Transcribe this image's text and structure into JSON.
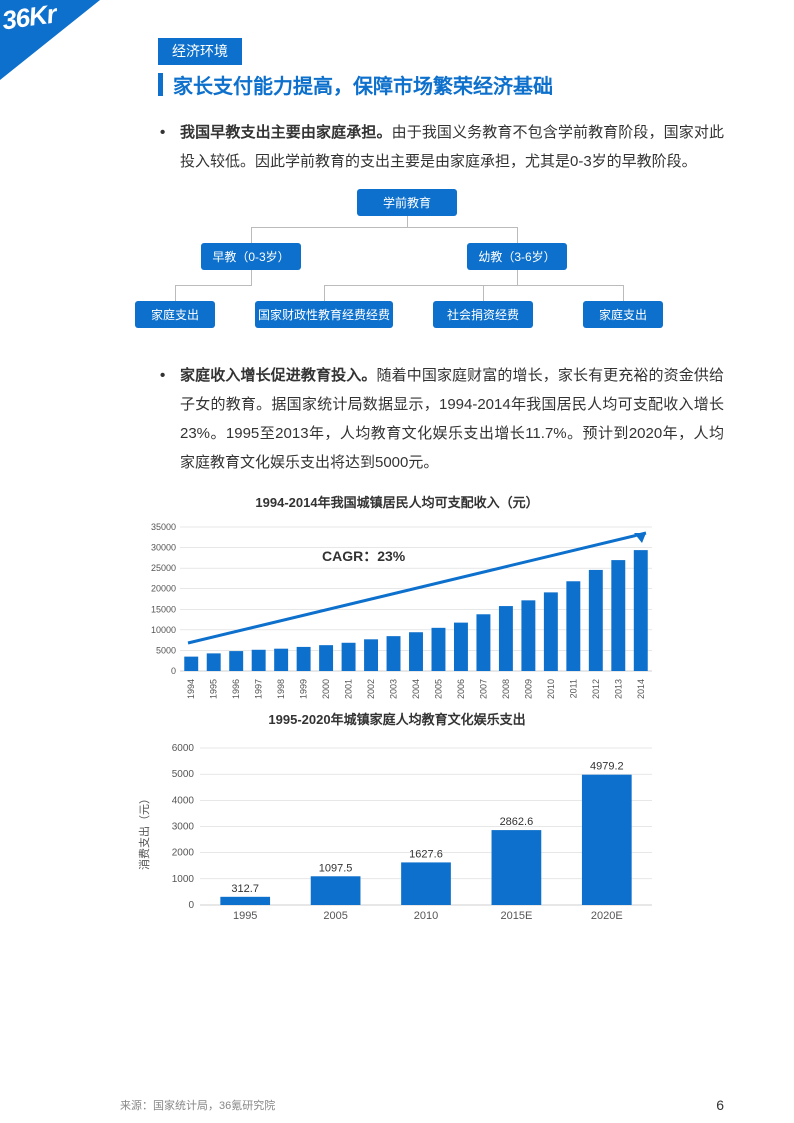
{
  "logo": "36Kr",
  "tag": "经济环境",
  "title": "家长支付能力提高，保障市场繁荣经济基础",
  "bullet1_bold": "我国早教支出主要由家庭承担。",
  "bullet1_rest": "由于我国义务教育不包含学前教育阶段，国家对此投入较低。因此学前教育的支出主要是由家庭承担，尤其是0-3岁的早教阶段。",
  "tree": {
    "root": "学前教育",
    "l1a": "早教（0-3岁）",
    "l1b": "幼教（3-6岁）",
    "l2a": "家庭支出",
    "l2b": "国家财政性教育经费经费",
    "l2c": "社会捐资经费",
    "l2d": "家庭支出"
  },
  "bullet2_bold": "家庭收入增长促进教育投入。",
  "bullet2_rest": "随着中国家庭财富的增长，家长有更充裕的资金供给子女的教育。据国家统计局数据显示，1994-2014年我国居民人均可支配收入增长23%。1995至2013年，人均教育文化娱乐支出增长11.7%。预计到2020年，人均家庭教育文化娱乐支出将达到5000元。",
  "chart1": {
    "title": "1994-2014年我国城镇居民人均可支配收入（元）",
    "cagr_label": "CAGR：23%",
    "years": [
      "1994",
      "1995",
      "1996",
      "1997",
      "1998",
      "1999",
      "2000",
      "2001",
      "2002",
      "2003",
      "2004",
      "2005",
      "2006",
      "2007",
      "2008",
      "2009",
      "2010",
      "2011",
      "2012",
      "2013",
      "2014"
    ],
    "values": [
      3496,
      4283,
      4839,
      5160,
      5425,
      5854,
      6280,
      6860,
      7703,
      8472,
      9422,
      10493,
      11760,
      13786,
      15781,
      17175,
      19109,
      21810,
      24565,
      26955,
      29381
    ],
    "ymax": 35000,
    "ystep": 5000,
    "bar_color": "#0d70cc",
    "grid_color": "#cfcfcf",
    "axis_color": "#666",
    "text_color": "#555"
  },
  "chart2": {
    "title": "1995-2020年城镇家庭人均教育文化娱乐支出",
    "ylabel": "消费支出（元）",
    "categories": [
      "1995",
      "2005",
      "2010",
      "2015E",
      "2020E"
    ],
    "values": [
      312.7,
      1097.5,
      1627.6,
      2862.6,
      4979.2
    ],
    "ymax": 6000,
    "ystep": 1000,
    "bar_color": "#0d70cc",
    "grid_color": "#cfcfcf",
    "axis_color": "#666",
    "text_color": "#555"
  },
  "source": "来源：国家统计局，36氪研究院",
  "page": "6"
}
